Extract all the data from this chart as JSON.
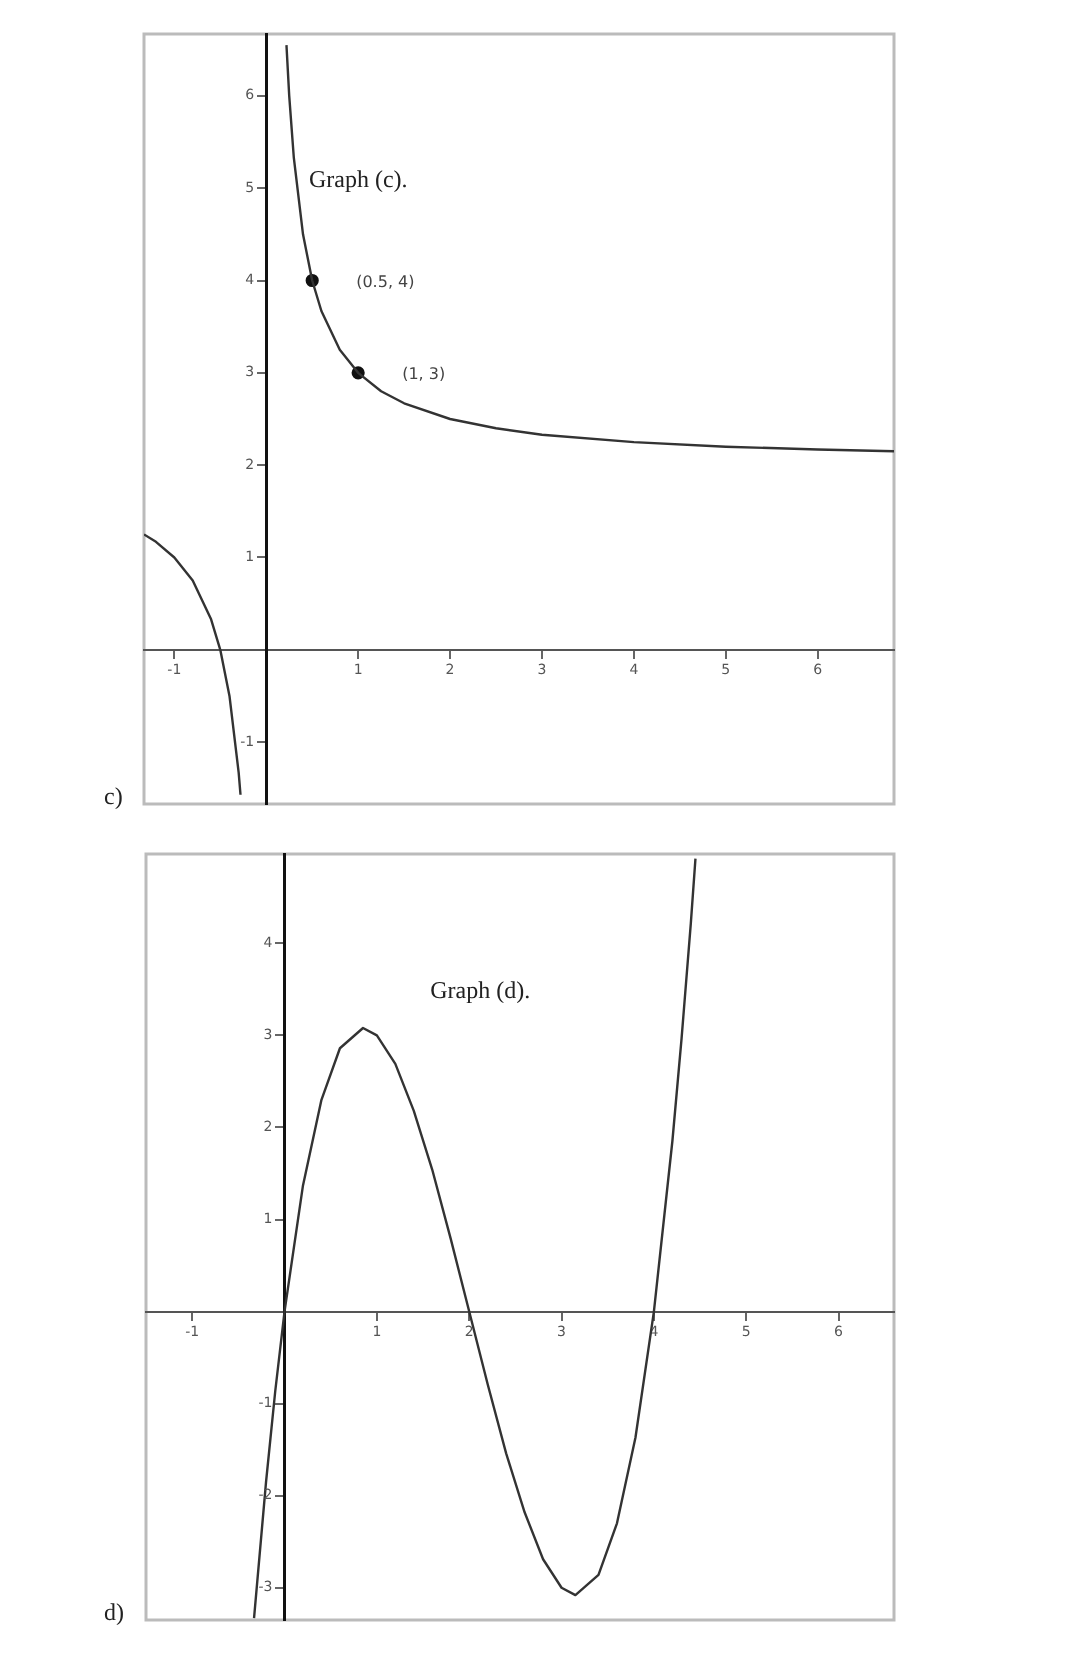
{
  "chart_data": [
    {
      "type": "line",
      "title": "Graph (c).",
      "annotations": [
        "c)",
        {
          "text": "(0.5, 4)",
          "x": 0.5,
          "y": 4
        },
        {
          "text": "(1, 3)",
          "x": 1,
          "y": 3
        }
      ],
      "xlim": [
        -1.33,
        6.83
      ],
      "ylim": [
        -1.67,
        6.67
      ],
      "xticks": [
        -1,
        1,
        2,
        3,
        4,
        5,
        6
      ],
      "yticks": [
        -1,
        1,
        2,
        3,
        4,
        5,
        6
      ],
      "grid": false,
      "legend": false,
      "series": [
        {
          "color": "#333333",
          "marker": "none",
          "line_style": "solid",
          "x": [
            -1.33,
            -1.2,
            -1,
            -0.8,
            -0.6,
            -0.5,
            -0.4,
            -0.3,
            -0.28,
            0,
            0.22,
            0.25,
            0.3,
            0.4,
            0.5,
            0.6,
            0.8,
            1,
            1.25,
            1.5,
            2,
            2.5,
            3,
            4,
            5,
            6,
            6.83
          ],
          "values": [
            1.25,
            1.17,
            1,
            0.75,
            0.33,
            0,
            -0.5,
            -1.33,
            -1.57,
            null,
            6.55,
            6,
            5.33,
            4.5,
            4,
            3.67,
            3.25,
            3,
            2.8,
            2.67,
            2.5,
            2.4,
            2.33,
            2.25,
            2.2,
            2.17,
            2.15
          ]
        },
        {
          "type": "scatter",
          "color": "#111111",
          "marker": "circle",
          "x": [
            0.5,
            1
          ],
          "values": [
            4,
            3
          ]
        }
      ]
    },
    {
      "type": "line",
      "title": "Graph (d).",
      "annotations": [
        "d)"
      ],
      "xlim": [
        -1.5,
        6.6
      ],
      "ylim": [
        -3.35,
        4.97
      ],
      "xticks": [
        -1,
        1,
        2,
        3,
        4,
        5,
        6
      ],
      "yticks": [
        -3,
        -2,
        -1,
        1,
        2,
        3,
        4
      ],
      "grid": false,
      "legend": false,
      "series": [
        {
          "color": "#333333",
          "marker": "none",
          "line_style": "solid",
          "x": [
            -0.33,
            -0.2,
            -0.1,
            0,
            0.2,
            0.4,
            0.6,
            0.85,
            1,
            1.2,
            1.4,
            1.6,
            1.8,
            2,
            2.2,
            2.4,
            2.6,
            2.8,
            3,
            3.15,
            3.4,
            3.6,
            3.8,
            4,
            4.2,
            4.3,
            4.4,
            4.45
          ],
          "values": [
            -3.33,
            -1.85,
            -0.86,
            0,
            1.37,
            2.3,
            2.86,
            3.08,
            3,
            2.69,
            2.18,
            1.54,
            0.79,
            0,
            -0.79,
            -1.54,
            -2.18,
            -2.69,
            -3,
            -3.08,
            -2.86,
            -2.3,
            -1.37,
            0,
            1.85,
            2.97,
            4.22,
            4.92
          ]
        }
      ]
    }
  ]
}
